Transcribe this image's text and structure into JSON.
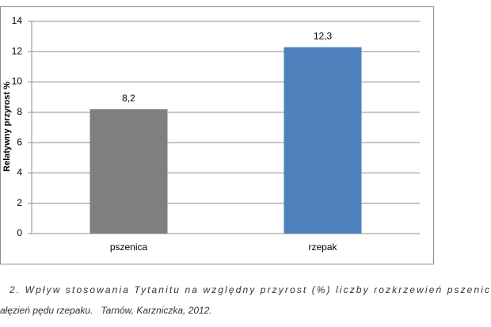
{
  "chart_data": {
    "type": "bar",
    "y_label": "Relatywny przyrost %",
    "categories": [
      "pszenica",
      "rzepak"
    ],
    "values": [
      8.2,
      12.3
    ],
    "value_labels": [
      "8,2",
      "12,3"
    ],
    "colors": [
      "#7f7f7f",
      "#4f81bd"
    ],
    "ylim": [
      0,
      14
    ],
    "yticks": [
      0,
      2,
      4,
      6,
      8,
      10,
      12,
      14
    ],
    "grid": true
  },
  "caption": [
    "2. Wpływ stosowania Tytanitu na względny przyrost (%) liczby rozkrzewień pszenic",
    "ałęzień pędu rzepaku.   Tarnów, Karzniczka, 2012."
  ]
}
